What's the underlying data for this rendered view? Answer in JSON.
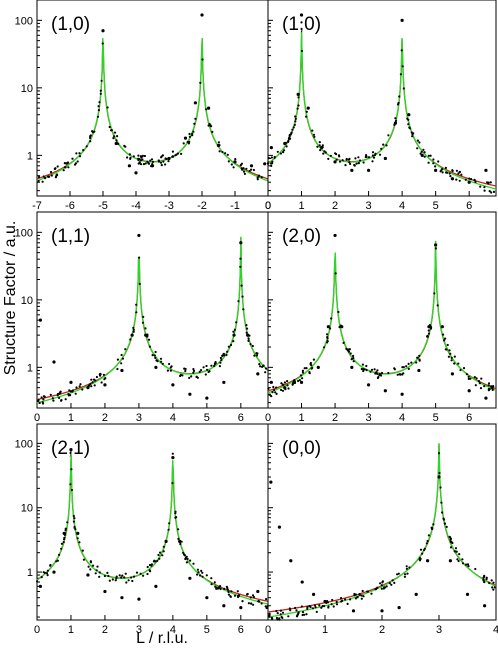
{
  "figure": {
    "ylabel": "Structure Factor / a.u.",
    "xlabel": "L / r.l.u."
  },
  "colors": {
    "data_points": "#000000",
    "fit_green": "#22dd22",
    "fit_red": "#cc2222",
    "axis": "#000000"
  },
  "chart_data": [
    {
      "type": "scatter",
      "panel": "(1,0)",
      "x_ticks": [
        -7,
        -6,
        -5,
        -4,
        -3,
        -2,
        -1,
        0
      ],
      "y_ticks": [
        1,
        10,
        100
      ],
      "yscale": "log",
      "xlim": [
        -7,
        0
      ],
      "ylim": [
        0.25,
        200
      ],
      "peaks": [
        -5,
        -2
      ],
      "series": [
        {
          "name": "",
          "style": "points",
          "x": [
            -5.0,
            -4.6,
            -4.2,
            -4.0,
            -3.5,
            -3.0,
            -2.5,
            -2.2,
            -2.0,
            -1.8,
            -1.5,
            -1.0,
            -0.5,
            -0.1
          ],
          "y": [
            70,
            1.5,
            0.7,
            0.55,
            0.7,
            0.9,
            1.8,
            6,
            120,
            5,
            1.4,
            0.8,
            0.7,
            0.75
          ]
        }
      ]
    },
    {
      "type": "scatter",
      "panel": "(1,0)",
      "x_ticks": [
        0,
        1,
        2,
        3,
        4,
        5,
        6
      ],
      "y_ticks": [
        1,
        10,
        100
      ],
      "yscale": "log",
      "xlim": [
        0,
        6.8
      ],
      "ylim": [
        0.25,
        200
      ],
      "peaks": [
        1,
        4
      ],
      "series": [
        {
          "name": "",
          "style": "points",
          "x": [
            0.1,
            0.5,
            0.9,
            1.0,
            1.2,
            1.6,
            2.0,
            2.5,
            3.0,
            3.5,
            3.8,
            4.0,
            4.2,
            4.6,
            5.0,
            5.5,
            6.0,
            6.5
          ],
          "y": [
            1.3,
            1.5,
            8,
            120,
            5,
            1.3,
            0.8,
            0.6,
            0.6,
            0.9,
            3,
            100,
            4,
            1.0,
            0.6,
            0.45,
            0.4,
            0.6
          ]
        }
      ]
    },
    {
      "type": "scatter",
      "panel": "(1,1)",
      "x_ticks": [
        0,
        1,
        2,
        3,
        4,
        5,
        6
      ],
      "y_ticks": [
        1,
        10,
        100
      ],
      "yscale": "log",
      "xlim": [
        0,
        6.8
      ],
      "ylim": [
        0.25,
        200
      ],
      "peaks": [
        3,
        6
      ],
      "series": [
        {
          "name": "",
          "style": "points",
          "x": [
            0.1,
            0.5,
            1.0,
            1.5,
            2.0,
            2.5,
            2.8,
            3.0,
            3.2,
            3.5,
            4.0,
            4.5,
            5.0,
            5.5,
            5.8,
            6.0,
            6.2,
            6.5
          ],
          "y": [
            5,
            1.2,
            0.6,
            0.5,
            0.55,
            0.9,
            3,
            90,
            3,
            1.0,
            0.55,
            0.4,
            0.35,
            0.6,
            3,
            70,
            3,
            0.8
          ]
        }
      ]
    },
    {
      "type": "scatter",
      "panel": "(2,0)",
      "x_ticks": [
        0,
        1,
        2,
        3,
        4,
        5,
        6
      ],
      "y_ticks": [
        1,
        10,
        100
      ],
      "yscale": "log",
      "xlim": [
        0,
        6.8
      ],
      "ylim": [
        0.25,
        200
      ],
      "peaks": [
        2,
        5
      ],
      "series": [
        {
          "name": "",
          "style": "points",
          "x": [
            0.1,
            0.5,
            1.0,
            1.5,
            1.8,
            2.0,
            2.2,
            2.5,
            3.0,
            3.5,
            4.0,
            4.5,
            4.8,
            5.0,
            5.2,
            5.5,
            6.0,
            6.5
          ],
          "y": [
            0.6,
            0.5,
            0.6,
            1.0,
            4,
            90,
            4,
            1.0,
            0.55,
            0.45,
            0.4,
            0.9,
            4,
            65,
            4,
            0.8,
            0.45,
            0.35
          ]
        }
      ]
    },
    {
      "type": "scatter",
      "panel": "(2,1)",
      "x_ticks": [
        0,
        1,
        2,
        3,
        4,
        5,
        6
      ],
      "y_ticks": [
        1,
        10,
        100
      ],
      "yscale": "log",
      "xlim": [
        0,
        6.8
      ],
      "ylim": [
        0.18,
        200
      ],
      "peaks": [
        1,
        4
      ],
      "series": [
        {
          "name": "",
          "style": "points",
          "x": [
            0.1,
            0.5,
            0.8,
            1.0,
            1.2,
            1.5,
            2.0,
            2.5,
            3.0,
            3.5,
            3.8,
            4.0,
            4.2,
            4.5,
            5.0,
            5.5,
            6.0,
            6.5
          ],
          "y": [
            0.6,
            1.0,
            4,
            80,
            4,
            0.9,
            0.5,
            0.4,
            0.38,
            0.6,
            3,
            60,
            3,
            0.8,
            0.4,
            0.3,
            0.28,
            0.5
          ]
        }
      ]
    },
    {
      "type": "scatter",
      "panel": "(0,0)",
      "x_ticks": [
        0,
        1,
        2,
        3,
        4
      ],
      "y_ticks": [
        1,
        10,
        100
      ],
      "yscale": "log",
      "xlim": [
        0,
        4
      ],
      "ylim": [
        0.18,
        200
      ],
      "peaks": [
        3
      ],
      "series": [
        {
          "name": "",
          "style": "points",
          "x": [
            0.05,
            0.2,
            0.4,
            0.6,
            0.8,
            1.0,
            1.5,
            2.0,
            2.3,
            2.6,
            2.8,
            3.0,
            3.2,
            3.5,
            3.8
          ],
          "y": [
            25,
            5,
            1.5,
            0.7,
            0.45,
            0.35,
            0.25,
            0.25,
            0.28,
            0.45,
            1.5,
            30,
            1.5,
            0.45,
            0.3
          ]
        }
      ]
    }
  ]
}
